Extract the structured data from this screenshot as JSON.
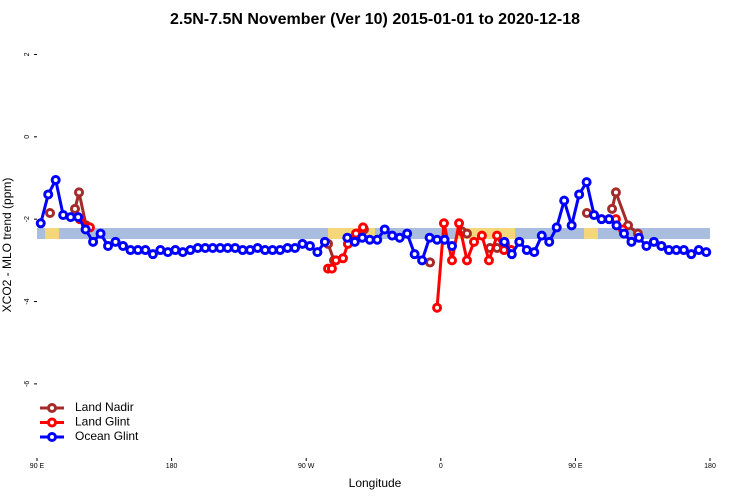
{
  "chart_data": {
    "type": "line",
    "title": "2.5N-7.5N November (Ver 10)   2015-01-01 to 2020-12-18",
    "x_label": "Longitude",
    "y_label": "XCO2 - MLO trend (ppm)",
    "xlim": [
      90,
      540
    ],
    "ylim": [
      -7.8,
      2.4
    ],
    "xticks": [
      {
        "value": 90,
        "label": "90 E"
      },
      180,
      {
        "value": 270,
        "label": "90 W"
      },
      {
        "value": 360,
        "label": "0"
      },
      {
        "value": 450,
        "label": "90 E"
      },
      {
        "value": 540,
        "label": "180"
      }
    ],
    "yticks": [
      2,
      0,
      -2,
      -4,
      -6
    ],
    "legend": "bottomleft",
    "series": [
      {
        "name": "Land Nadir",
        "color": "#a52a2a",
        "x": [
          98.7,
          null,
          115.4,
          118.1,
          122.8,
          null,
          284.6,
          288.6,
          null,
          304.6,
          308.6,
          null,
          352.8,
          null,
          374.2,
          377.5,
          null,
          392.9,
          397.6,
          402.9,
          null,
          457.7,
          null,
          474.5,
          477.1,
          485.2,
          491.8
        ],
        "values": [
          -1.85,
          null,
          -1.75,
          -1.35,
          -2.15,
          null,
          -2.6,
          -3.0,
          null,
          -2.35,
          -2.25,
          null,
          -3.05,
          null,
          -2.3,
          -2.35,
          null,
          -2.7,
          -2.7,
          -2.6,
          null,
          -1.85,
          null,
          -1.75,
          -1.35,
          -2.15,
          -2.35
        ]
      },
      {
        "name": "Land Glint",
        "color": "#ff0000",
        "x": [
          118.7,
          125.4,
          null,
          284.6,
          287.2,
          289.9,
          294.6,
          297.9,
          303.3,
          308.0,
          null,
          357.5,
          362.1,
          367.5,
          372.2,
          377.5,
          382.2,
          387.5,
          392.2,
          397.6,
          402.3,
          407.0,
          null,
          477.1,
          481.8
        ],
        "values": [
          -2.0,
          -2.2,
          null,
          -3.2,
          -3.2,
          -3.0,
          -2.95,
          -2.6,
          -2.35,
          -2.2,
          null,
          -4.15,
          -2.1,
          -3.0,
          -2.1,
          -3.0,
          -2.55,
          -2.4,
          -3.0,
          -2.4,
          -2.75,
          -2.75,
          null,
          -2.0,
          -2.25
        ]
      },
      {
        "name": "Ocean Glint",
        "color": "#0000ff",
        "x": [
          92.5,
          97.5,
          102.5,
          107.5,
          112.5,
          117.5,
          122.5,
          127.5,
          132.5,
          137.5,
          142.5,
          147.5,
          152.5,
          157.5,
          162.5,
          167.5,
          172.5,
          177.5,
          182.5,
          187.5,
          192.5,
          197.5,
          202.5,
          207.5,
          212.5,
          217.5,
          222.5,
          227.5,
          232.5,
          237.5,
          242.5,
          247.5,
          252.5,
          257.5,
          262.5,
          267.5,
          272.5,
          277.5,
          282.5,
          null,
          297.5,
          302.5,
          307.5,
          312.5,
          317.5,
          322.5,
          327.5,
          332.5,
          337.5,
          342.5,
          347.5,
          352.5,
          357.5,
          362.5,
          367.5,
          null,
          402.5,
          407.5,
          412.5,
          417.5,
          422.5,
          427.5,
          432.5,
          437.5,
          442.5,
          447.5,
          452.5,
          457.5,
          462.5,
          467.5,
          472.5,
          477.5,
          482.5,
          487.5,
          492.5,
          497.5,
          502.5,
          507.5,
          512.5,
          517.5,
          522.5,
          527.5,
          532.5,
          537.5
        ],
        "values": [
          -2.1,
          -1.4,
          -1.05,
          -1.9,
          -1.95,
          -1.95,
          -2.25,
          -2.55,
          -2.35,
          -2.65,
          -2.55,
          -2.65,
          -2.75,
          -2.75,
          -2.75,
          -2.85,
          -2.75,
          -2.8,
          -2.75,
          -2.8,
          -2.75,
          -2.7,
          -2.7,
          -2.7,
          -2.7,
          -2.7,
          -2.7,
          -2.75,
          -2.75,
          -2.7,
          -2.75,
          -2.75,
          -2.75,
          -2.7,
          -2.7,
          -2.6,
          -2.65,
          -2.8,
          -2.55,
          null,
          -2.45,
          -2.55,
          -2.45,
          -2.5,
          -2.5,
          -2.25,
          -2.4,
          -2.45,
          -2.35,
          -2.85,
          -3.0,
          -2.45,
          -2.5,
          -2.5,
          -2.65,
          null,
          -2.55,
          -2.85,
          -2.55,
          -2.75,
          -2.8,
          -2.4,
          -2.55,
          -2.2,
          -1.55,
          -2.15,
          -1.4,
          -1.1,
          -1.9,
          -2.0,
          -2.0,
          -2.15,
          -2.35,
          -2.55,
          -2.45,
          -2.65,
          -2.55,
          -2.65,
          -2.75,
          -2.75,
          -2.75,
          -2.85,
          -2.75,
          -2.8
        ]
      }
    ]
  }
}
